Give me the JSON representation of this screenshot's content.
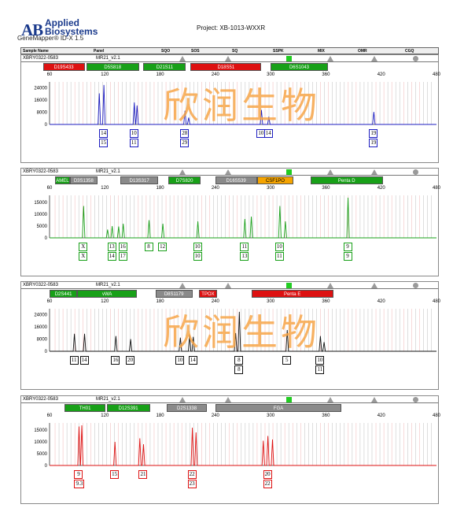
{
  "header": {
    "logo_mark": "AB",
    "company_line1": "Applied",
    "company_line2": "Biosystems",
    "software": "GeneMapper® ID-X 1.5",
    "project": "Project: XB-1013-WXXR"
  },
  "columns": {
    "sample_name": "Sample Name",
    "panel": "Panel",
    "sqo": "SQO",
    "sos": "SOS",
    "sq": "SQ",
    "sspk": "SSPK",
    "mix": "MIX",
    "omr": "OMR",
    "cgq": "CGQ"
  },
  "watermark": "欣润生物",
  "colors": {
    "blue": "#1c1cc0",
    "green": "#1aa01a",
    "black": "#111111",
    "red": "#dd1111",
    "marker_red": "#dd1111",
    "marker_green": "#18a018",
    "marker_gray": "#8a8a8a",
    "marker_orange": "#f5a400",
    "quality_green": "#22cc22"
  },
  "panels": [
    {
      "sample_id": "XBRY0322-0583",
      "panel_name": "MR21_v2.1",
      "dye": "blue",
      "markers": [
        {
          "name": "D19S433",
          "color": "red"
        },
        {
          "name": "D5S818",
          "color": "green"
        },
        {
          "name": "D21S11",
          "color": "green"
        },
        {
          "name": "D18S51",
          "color": "red"
        },
        {
          "name": "D6S1043",
          "color": "green"
        }
      ],
      "x_ticks": [
        "60",
        "120",
        "180",
        "240",
        "300",
        "360",
        "420",
        "480"
      ],
      "y_ticks": [
        "24000",
        "16000",
        "8000",
        "0"
      ],
      "y_max": 28000,
      "peaks": [
        [
          114,
          20500
        ],
        [
          119,
          26000
        ],
        [
          152,
          14500
        ],
        [
          155,
          12500
        ],
        [
          207,
          9000
        ],
        [
          211,
          4500
        ],
        [
          290,
          9500
        ],
        [
          298,
          5000
        ],
        [
          412,
          8200
        ]
      ],
      "alleles": [
        {
          "top": "14",
          "bottom": "15"
        },
        {
          "top": "10",
          "bottom": "11"
        },
        {
          "top": "28",
          "bottom": "29"
        },
        {
          "top": "10",
          "bottom": null
        },
        {
          "top": "14",
          "bottom": null
        },
        {
          "top": "19",
          "bottom": "19"
        }
      ],
      "show_watermark": true
    },
    {
      "sample_id": "XBRY0322-0583",
      "panel_name": "MR21_v2.1",
      "dye": "green",
      "markers": [
        {
          "name": "AMEL",
          "color": "green"
        },
        {
          "name": "D3S1358",
          "color": "gray"
        },
        {
          "name": "D13S317",
          "color": "gray"
        },
        {
          "name": "D7S820",
          "color": "green"
        },
        {
          "name": "D16S539",
          "color": "gray"
        },
        {
          "name": "CSF1PO",
          "color": "orange"
        },
        {
          "name": "Penta D",
          "color": "green"
        }
      ],
      "x_ticks": [
        "60",
        "120",
        "180",
        "240",
        "300",
        "360",
        "420",
        "480"
      ],
      "y_ticks": [
        "15000",
        "10000",
        "5000",
        "0"
      ],
      "y_max": 18000,
      "peaks": [
        [
          97,
          13500
        ],
        [
          123,
          3500
        ],
        [
          128,
          5000
        ],
        [
          135,
          4800
        ],
        [
          140,
          6000
        ],
        [
          168,
          7500
        ],
        [
          183,
          6000
        ],
        [
          221,
          7000
        ],
        [
          272,
          8000
        ],
        [
          279,
          9000
        ],
        [
          310,
          13500
        ],
        [
          316,
          7000
        ],
        [
          384,
          17000
        ]
      ],
      "alleles": [
        {
          "top": "X",
          "bottom": "X"
        },
        {
          "top": "13",
          "bottom": "14"
        },
        {
          "top": "16",
          "bottom": "17"
        },
        {
          "top": "8",
          "bottom": null
        },
        {
          "top": "12",
          "bottom": null
        },
        {
          "top": "10",
          "bottom": "10"
        },
        {
          "top": "11",
          "bottom": "13"
        },
        {
          "top": "10",
          "bottom": "11"
        },
        {
          "top": "9",
          "bottom": "9"
        }
      ],
      "show_watermark": false
    },
    {
      "sample_id": "XBRY0322-0583",
      "panel_name": "MR21_v2.1",
      "dye": "black",
      "markers": [
        {
          "name": "D2S441",
          "color": "green"
        },
        {
          "name": "vWA",
          "color": "green"
        },
        {
          "name": "D8S1179",
          "color": "gray"
        },
        {
          "name": "TPOX",
          "color": "red"
        },
        {
          "name": "Penta E",
          "color": "red"
        }
      ],
      "x_ticks": [
        "60",
        "120",
        "180",
        "240",
        "300",
        "360",
        "420",
        "480"
      ],
      "y_ticks": [
        "24000",
        "16000",
        "8000",
        "0"
      ],
      "y_max": 28000,
      "peaks": [
        [
          87,
          11500
        ],
        [
          98,
          11500
        ],
        [
          132,
          10000
        ],
        [
          148,
          8000
        ],
        [
          202,
          9000
        ],
        [
          212,
          11000
        ],
        [
          216,
          9500
        ],
        [
          262,
          12000
        ],
        [
          266,
          26000
        ],
        [
          318,
          14000
        ],
        [
          354,
          10000
        ],
        [
          358,
          6000
        ]
      ],
      "alleles": [
        {
          "top": "11",
          "bottom": null
        },
        {
          "top": "14",
          "bottom": null
        },
        {
          "top": "16",
          "bottom": null
        },
        {
          "top": "20",
          "bottom": null
        },
        {
          "top": "10",
          "bottom": null
        },
        {
          "top": "14",
          "bottom": null
        },
        {
          "top": "8",
          "bottom": "8"
        },
        {
          "top": "5",
          "bottom": null
        },
        {
          "top": "10",
          "bottom": "11"
        }
      ],
      "show_watermark": true
    },
    {
      "sample_id": "XBRY0322-0583",
      "panel_name": "MR21_v2.1",
      "dye": "red",
      "markers": [
        {
          "name": "TH01",
          "color": "green"
        },
        {
          "name": "D12S391",
          "color": "green"
        },
        {
          "name": "D2S1338",
          "color": "gray"
        },
        {
          "name": "FGA",
          "color": "gray"
        }
      ],
      "x_ticks": [
        "60",
        "120",
        "180",
        "240",
        "300",
        "360",
        "420",
        "480"
      ],
      "y_ticks": [
        "15000",
        "10000",
        "5000",
        "0"
      ],
      "y_max": 18000,
      "peaks": [
        [
          92,
          16500
        ],
        [
          95,
          17000
        ],
        [
          131,
          10000
        ],
        [
          158,
          11500
        ],
        [
          162,
          9000
        ],
        [
          215,
          16000
        ],
        [
          219,
          14000
        ],
        [
          292,
          10500
        ],
        [
          297,
          12500
        ],
        [
          302,
          11000
        ]
      ],
      "alleles": [
        {
          "top": "9",
          "bottom": "9.3"
        },
        {
          "top": "15",
          "bottom": null
        },
        {
          "top": "21",
          "bottom": null
        },
        {
          "top": "22",
          "bottom": "23"
        },
        {
          "top": "20",
          "bottom": "22"
        }
      ],
      "show_watermark": false
    }
  ]
}
